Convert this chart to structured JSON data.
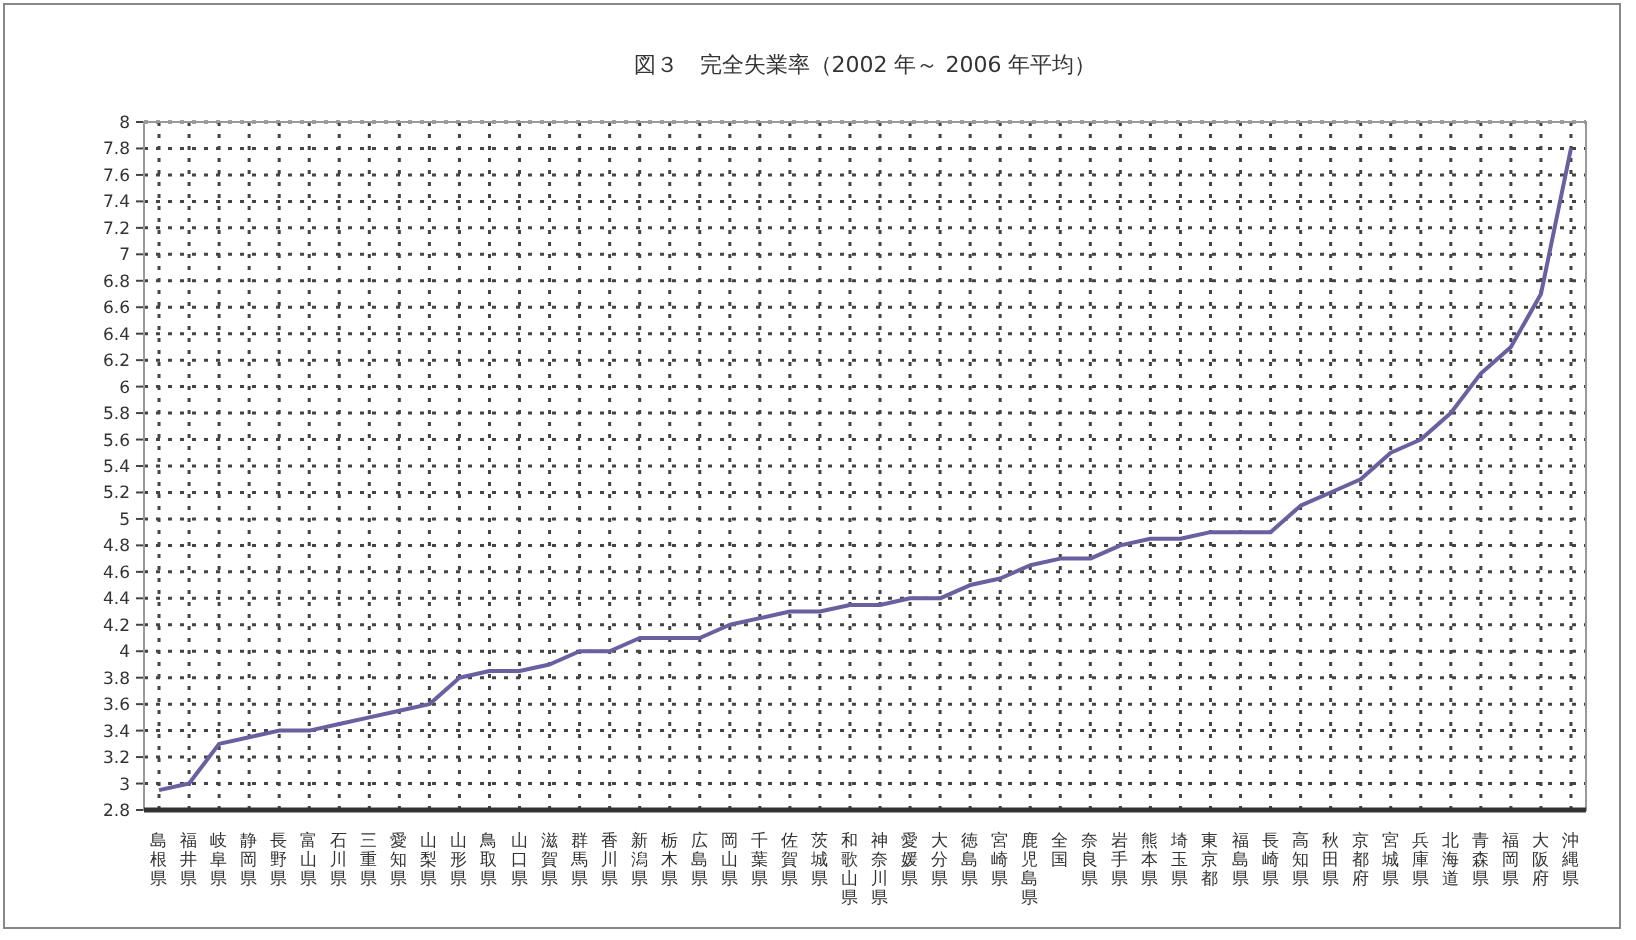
{
  "chart_data": {
    "type": "line",
    "title": "図３　完全失業率（2002 年～ 2006 年平均）",
    "categories": [
      "島根県",
      "福井県",
      "岐阜県",
      "静岡県",
      "長野県",
      "富山県",
      "石川県",
      "三重県",
      "愛知県",
      "山梨県",
      "山形県",
      "鳥取県",
      "山口県",
      "滋賀県",
      "群馬県",
      "香川県",
      "新潟県",
      "栃木県",
      "広島県",
      "岡山県",
      "千葉県",
      "佐賀県",
      "茨城県",
      "和歌山県",
      "神奈川県",
      "愛媛県",
      "大分県",
      "徳島県",
      "宮崎県",
      "鹿児島県",
      "全国",
      "奈良県",
      "岩手県",
      "熊本県",
      "埼玉県",
      "東京都",
      "福島県",
      "長崎県",
      "高知県",
      "秋田県",
      "京都府",
      "宮城県",
      "兵庫県",
      "北海道",
      "青森県",
      "福岡県",
      "大阪府",
      "沖縄県"
    ],
    "series": [
      {
        "color": "#6b5fa0",
        "values": [
          2.95,
          3.0,
          3.3,
          3.35,
          3.4,
          3.4,
          3.45,
          3.5,
          3.55,
          3.6,
          3.8,
          3.85,
          3.85,
          3.9,
          4.0,
          4.0,
          4.1,
          4.1,
          4.1,
          4.2,
          4.25,
          4.3,
          4.3,
          4.35,
          4.35,
          4.4,
          4.4,
          4.5,
          4.55,
          4.65,
          4.7,
          4.7,
          4.8,
          4.85,
          4.85,
          4.9,
          4.9,
          4.9,
          5.1,
          5.2,
          5.3,
          5.5,
          5.6,
          5.8,
          6.1,
          6.3,
          6.7,
          7.8
        ]
      }
    ],
    "ylim": [
      2.8,
      8
    ],
    "yticks": [
      {
        "value": 2.8,
        "label": "2.8"
      },
      3,
      {
        "value": 3.2,
        "label": "3.2"
      },
      {
        "value": 3.4,
        "label": "3.4"
      },
      {
        "value": 3.6,
        "label": "3.6"
      },
      {
        "value": 3.8,
        "label": "3.8"
      },
      4,
      {
        "value": 4.2,
        "label": "4.2"
      },
      {
        "value": 4.4,
        "label": "4.4"
      },
      {
        "value": 4.6,
        "label": "4.6"
      },
      {
        "value": 4.8,
        "label": "4.8"
      },
      5,
      {
        "value": 5.2,
        "label": "5.2"
      },
      {
        "value": 5.4,
        "label": "5.4"
      },
      {
        "value": 5.6,
        "label": "5.6"
      },
      {
        "value": 5.8,
        "label": "5.8"
      },
      6,
      {
        "value": 6.2,
        "label": "6.2"
      },
      {
        "value": 6.4,
        "label": "6.4"
      },
      {
        "value": 6.6,
        "label": "6.6"
      },
      {
        "value": 6.8,
        "label": "6.8"
      },
      7,
      {
        "value": 7.2,
        "label": "7.2"
      },
      {
        "value": 7.4,
        "label": "7.4"
      },
      {
        "value": 7.6,
        "label": "7.6"
      },
      {
        "value": 7.8,
        "label": "7.8"
      },
      8
    ],
    "grid": true,
    "marker": "none",
    "line_style": "solid"
  }
}
